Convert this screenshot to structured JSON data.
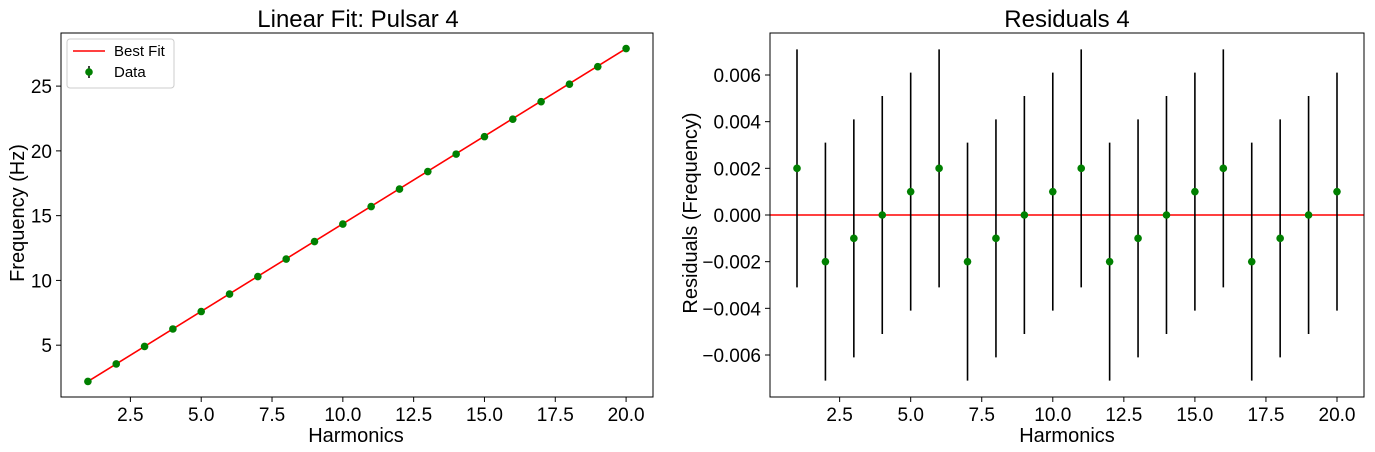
{
  "chart_data": [
    {
      "type": "line",
      "title": "Linear Fit: Pulsar 4",
      "xlabel": "Harmonics",
      "ylabel": "Frequency (Hz)",
      "xlim": [
        0.05,
        20.95
      ],
      "ylim": [
        1.0,
        29.1
      ],
      "xticks": [
        2.5,
        5.0,
        7.5,
        10.0,
        12.5,
        15.0,
        17.5,
        20.0
      ],
      "xtick_labels": [
        "2.5",
        "5.0",
        "7.5",
        "10.0",
        "12.5",
        "15.0",
        "17.5",
        "20.0"
      ],
      "yticks": [
        5,
        10,
        15,
        20,
        25
      ],
      "ytick_labels": [
        "5",
        "10",
        "15",
        "20",
        "25"
      ],
      "grid": false,
      "legend": {
        "placement": "upper-left",
        "entries": [
          "Best Fit",
          "Data"
        ]
      },
      "series": [
        {
          "name": "Best Fit",
          "kind": "line",
          "color": "#ff0000",
          "x": [
            1,
            20
          ],
          "y": [
            2.2,
            27.9
          ]
        },
        {
          "name": "Data",
          "kind": "errorbar-scatter",
          "color": "#008000",
          "x": [
            1,
            2,
            3,
            4,
            5,
            6,
            7,
            8,
            9,
            10,
            11,
            12,
            13,
            14,
            15,
            16,
            17,
            18,
            19,
            20
          ],
          "y": [
            2.2,
            3.55,
            4.9,
            6.25,
            7.6,
            8.95,
            10.3,
            11.65,
            13.0,
            14.35,
            15.7,
            17.05,
            18.4,
            19.75,
            21.1,
            22.45,
            23.8,
            25.15,
            26.5,
            27.9
          ]
        }
      ]
    },
    {
      "type": "scatter",
      "title": "Residuals 4",
      "xlabel": "Harmonics",
      "ylabel": "Residuals (Frequency)",
      "xlim": [
        0.05,
        20.95
      ],
      "ylim": [
        -0.0078,
        0.0078
      ],
      "xticks": [
        2.5,
        5.0,
        7.5,
        10.0,
        12.5,
        15.0,
        17.5,
        20.0
      ],
      "xtick_labels": [
        "2.5",
        "5.0",
        "7.5",
        "10.0",
        "12.5",
        "15.0",
        "17.5",
        "20.0"
      ],
      "yticks": [
        -0.006,
        -0.004,
        -0.002,
        0.0,
        0.002,
        0.004,
        0.006
      ],
      "ytick_labels": [
        "−0.006",
        "−0.004",
        "−0.002",
        "0.000",
        "0.002",
        "0.004",
        "0.006"
      ],
      "grid": false,
      "zero_line": {
        "y": 0,
        "color": "#ff0000"
      },
      "series": [
        {
          "kind": "errorbar-scatter",
          "color": "#008000",
          "error_color": "#000000",
          "error": 0.0051,
          "x": [
            1,
            2,
            3,
            4,
            5,
            6,
            7,
            8,
            9,
            10,
            11,
            12,
            13,
            14,
            15,
            16,
            17,
            18,
            19,
            20
          ],
          "y": [
            0.002,
            -0.002,
            -0.001,
            0.0,
            0.001,
            0.002,
            -0.002,
            -0.001,
            0.0,
            0.001,
            0.002,
            -0.002,
            -0.001,
            0.0,
            0.001,
            0.002,
            -0.002,
            -0.001,
            0.0,
            0.001
          ]
        }
      ]
    }
  ]
}
